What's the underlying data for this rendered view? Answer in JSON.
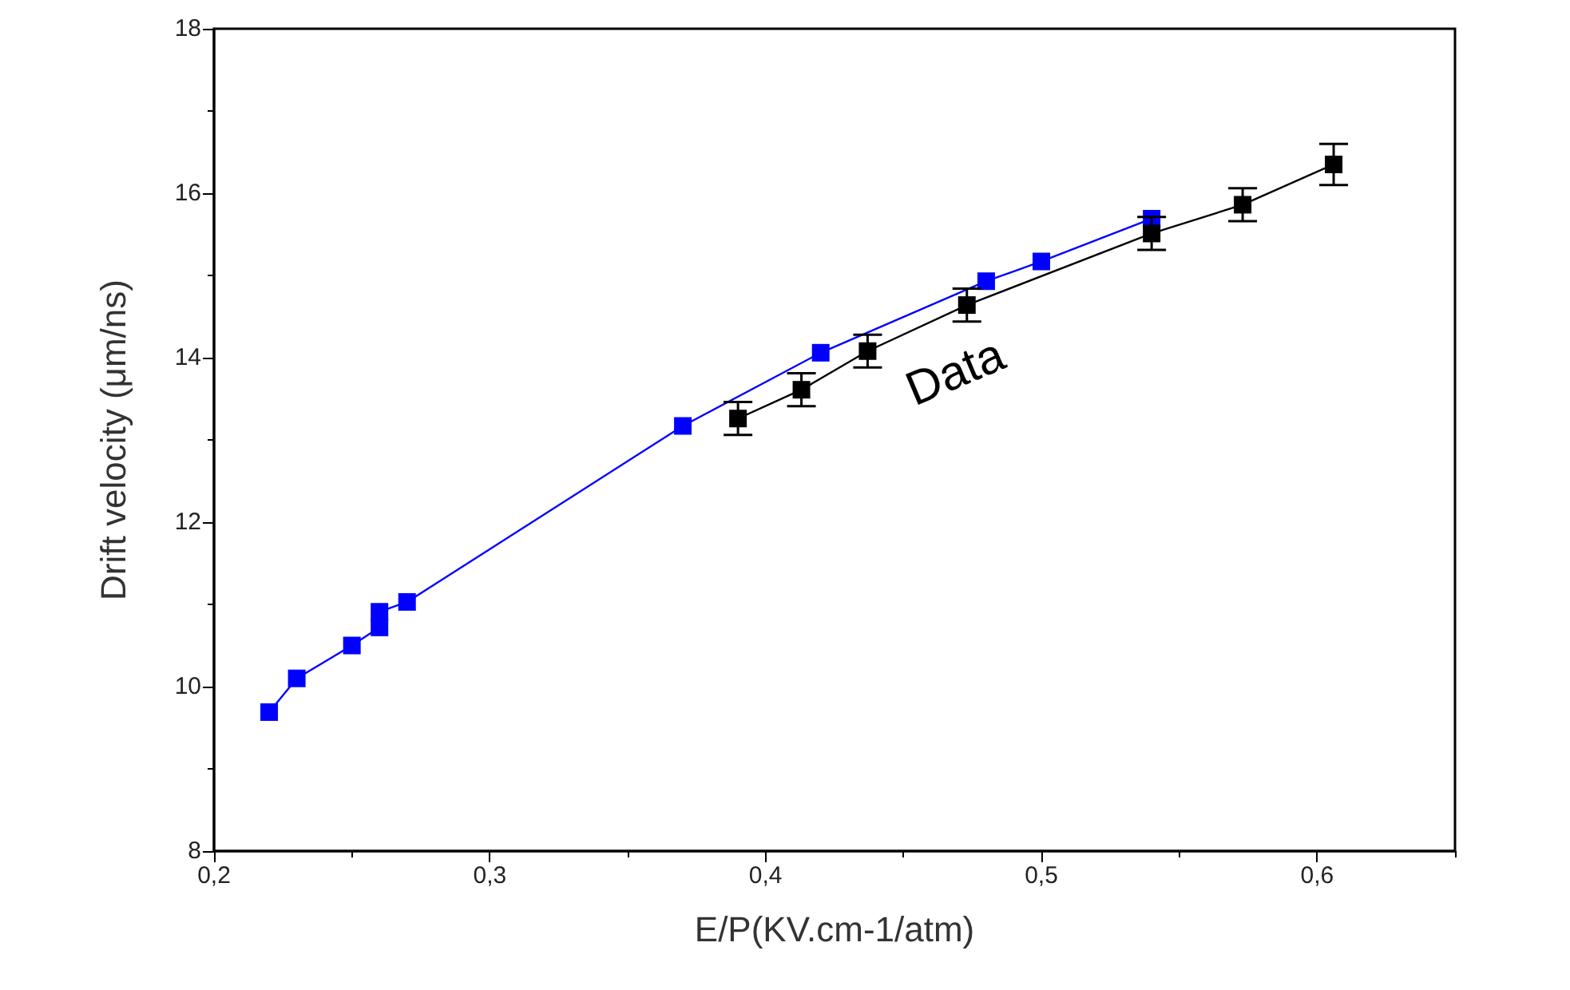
{
  "chart_data": {
    "type": "line",
    "xlabel": "E/P(KV.cm-1/atm)",
    "ylabel": "Drift velocity (μm/ns)",
    "xlim": [
      0.2,
      0.65
    ],
    "xticks": [
      {
        "value": 0.2,
        "label": "0,2"
      },
      {
        "value": 0.3,
        "label": "0,3"
      },
      {
        "value": 0.4,
        "label": "0,4"
      },
      {
        "value": 0.5,
        "label": "0,5"
      },
      {
        "value": 0.6,
        "label": "0,6"
      }
    ],
    "ylim": [
      8,
      18
    ],
    "yticks": [
      8,
      10,
      12,
      14,
      16,
      18
    ],
    "marker": "square",
    "grid": false,
    "legend": false,
    "series": [
      {
        "color": "#0000ff",
        "x": [
          0.22,
          0.23,
          0.25,
          0.26,
          0.26,
          0.27,
          0.37,
          0.42,
          0.48,
          0.5,
          0.54
        ],
        "values": [
          9.69,
          10.1,
          10.5,
          10.72,
          10.91,
          11.03,
          13.17,
          14.06,
          14.93,
          15.17,
          15.69
        ]
      },
      {
        "name": "Data",
        "color": "#000000",
        "x": [
          0.39,
          0.413,
          0.437,
          0.473,
          0.54,
          0.573,
          0.606
        ],
        "values": [
          13.26,
          13.61,
          14.08,
          14.64,
          15.51,
          15.86,
          16.35
        ],
        "errors": [
          0.2,
          0.2,
          0.2,
          0.2,
          0.2,
          0.2,
          0.25
        ]
      }
    ]
  }
}
